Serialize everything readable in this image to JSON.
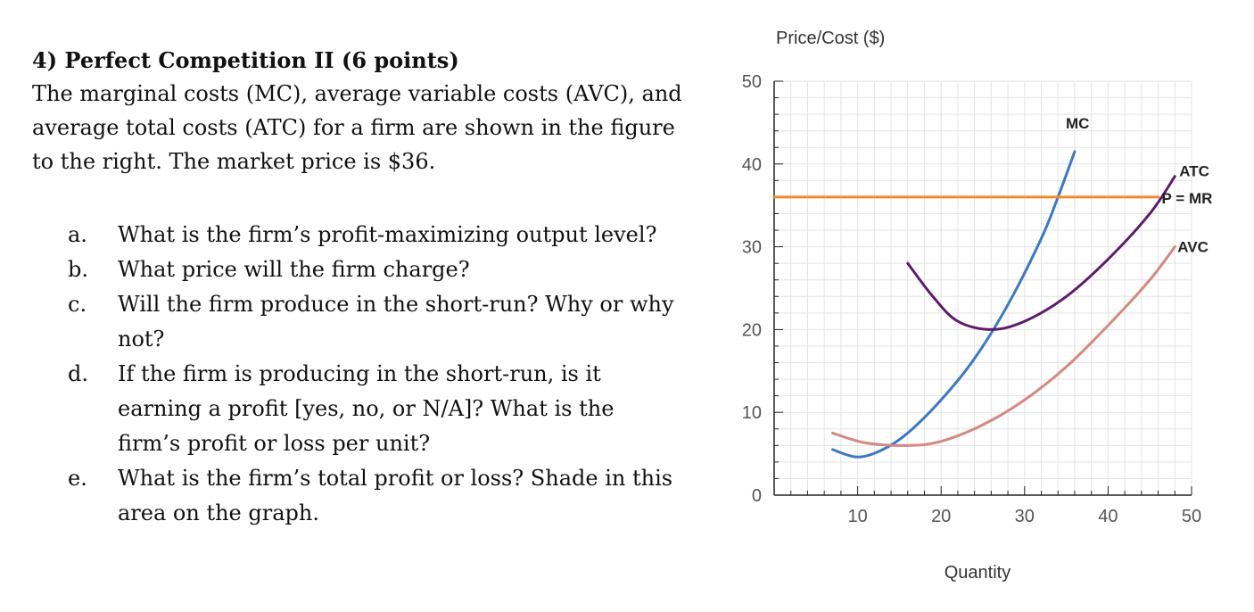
{
  "question": {
    "title": "4) Perfect Competition II (6 points)",
    "intro": "The marginal costs (MC), average variable costs (AVC), and average total costs (ATC) for a firm are shown in the figure to the right. The market price is $36.",
    "items": [
      {
        "letter": "a.",
        "text": "What is the firm’s profit-maximizing output level?"
      },
      {
        "letter": "b.",
        "text": "What price will the firm charge?"
      },
      {
        "letter": "c.",
        "text": "Will the firm produce in the short-run? Why or why not?"
      },
      {
        "letter": "d.",
        "text": "If the firm is producing in the short-run, is it earning a profit [yes, no, or N/A]? What is the firm’s profit or loss per unit?"
      },
      {
        "letter": "e.",
        "text": "What is the firm’s total profit or loss? Shade in this area on the graph."
      }
    ]
  },
  "chart_data": {
    "type": "line",
    "title": "",
    "xlabel": "Quantity",
    "ylabel": "Price/Cost ($)",
    "xlim": [
      0,
      50
    ],
    "ylim": [
      0,
      50
    ],
    "xticks": [
      10,
      20,
      30,
      40,
      50
    ],
    "yticks": [
      0,
      10,
      20,
      30,
      40,
      50
    ],
    "grid": true,
    "series": [
      {
        "name": "MC",
        "color": "#3a78c8",
        "points": [
          [
            7,
            5.5
          ],
          [
            10,
            4.6
          ],
          [
            13,
            5.5
          ],
          [
            16,
            7.5
          ],
          [
            20,
            11.5
          ],
          [
            24,
            16.5
          ],
          [
            28,
            23
          ],
          [
            32,
            31
          ],
          [
            34,
            36
          ],
          [
            36,
            41.5
          ]
        ]
      },
      {
        "name": "ATC",
        "color": "#5e1a6e",
        "points": [
          [
            16,
            28
          ],
          [
            19,
            24
          ],
          [
            22,
            21
          ],
          [
            26,
            20
          ],
          [
            30,
            21
          ],
          [
            35,
            24
          ],
          [
            40,
            28.5
          ],
          [
            45,
            34
          ],
          [
            48,
            38.5
          ]
        ]
      },
      {
        "name": "AVC",
        "color": "#d68880",
        "points": [
          [
            7,
            7.5
          ],
          [
            11,
            6.3
          ],
          [
            16,
            6
          ],
          [
            20,
            6.5
          ],
          [
            25,
            8.5
          ],
          [
            30,
            11.5
          ],
          [
            35,
            15.5
          ],
          [
            40,
            20.5
          ],
          [
            45,
            26
          ],
          [
            48,
            30
          ]
        ]
      },
      {
        "name": "P = MR",
        "color": "#f08a2c",
        "points": [
          [
            0,
            36
          ],
          [
            46,
            36
          ]
        ]
      }
    ]
  }
}
